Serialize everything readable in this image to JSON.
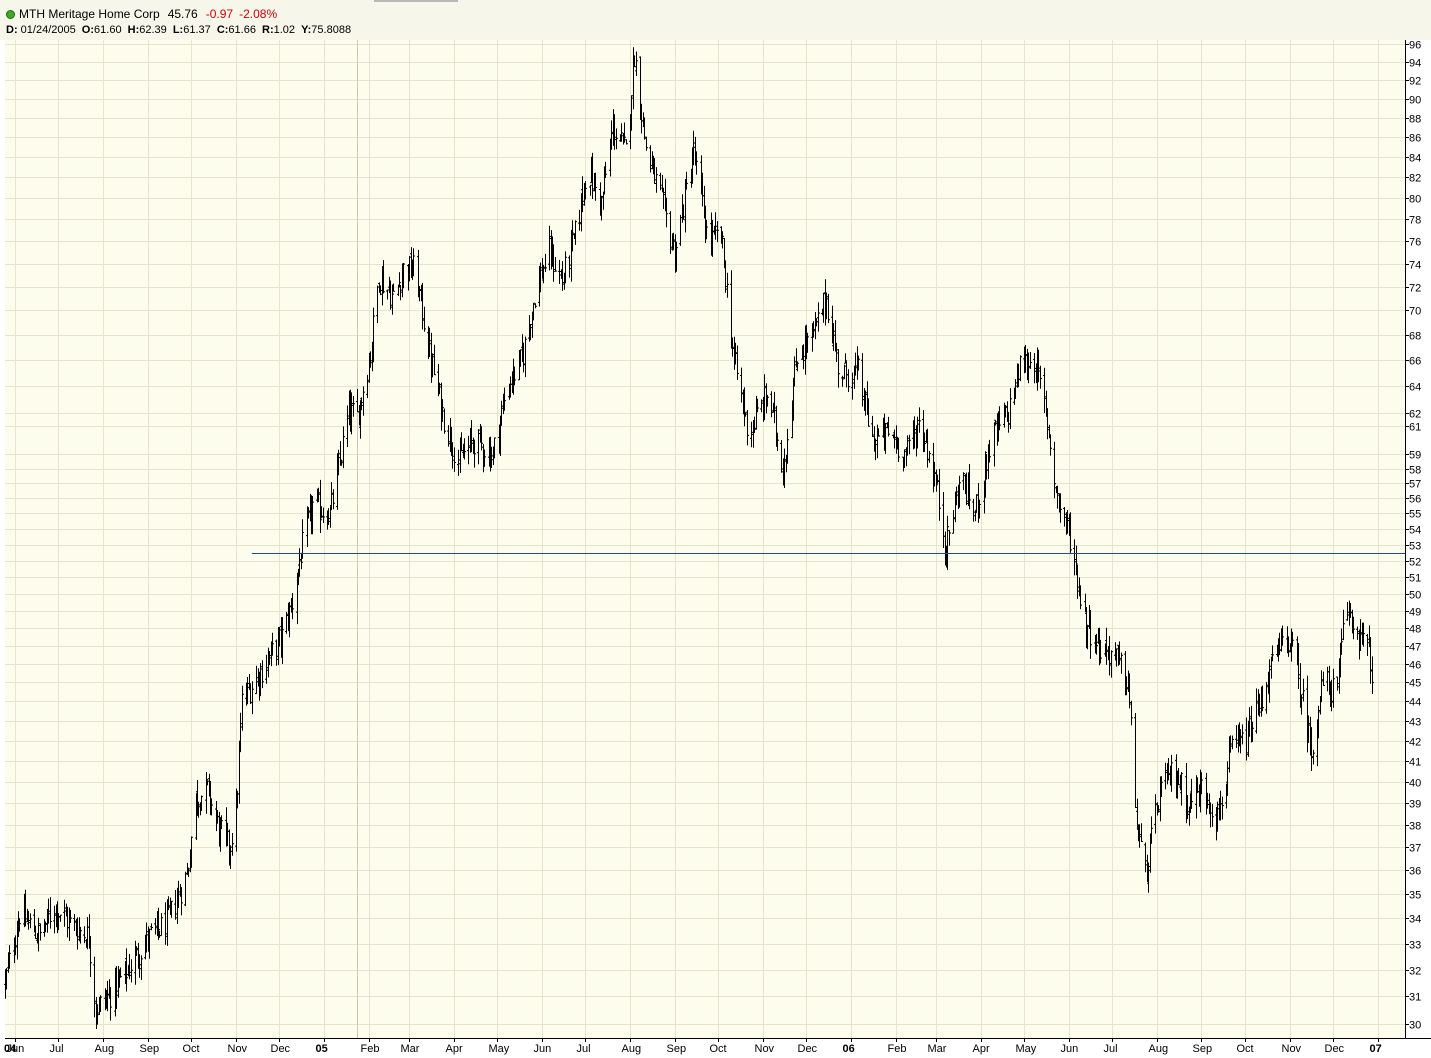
{
  "header": {
    "symbol_name": "MTH Meritage Home Corp",
    "price": "45.76",
    "change": "-0.97",
    "change_pct": "-2.08%",
    "status_icon": "green-circle-icon",
    "ohlc": {
      "d_label": "D:",
      "d_value": "01/24/2005",
      "o_label": "O:",
      "o_value": "61.60",
      "h_label": "H:",
      "h_value": "62.39",
      "l_label": "L:",
      "l_value": "61.37",
      "c_label": "C:",
      "c_value": "61.66",
      "r_label": "R:",
      "r_value": "1.02",
      "y_label": "Y:",
      "y_value": "75.8088"
    }
  },
  "colors": {
    "plot_background": "#fdfdee",
    "grid": "#e6e4cf",
    "bars": "#000000",
    "support_line": "#1f4b99",
    "negative_change": "#d00000"
  },
  "chart_data": {
    "type": "ohlc",
    "title": "",
    "xlabel": "",
    "ylabel": "",
    "y_scale": "log",
    "ylim": [
      29.5,
      96.5
    ],
    "y_ticks": [
      30,
      31,
      32,
      33,
      34,
      35,
      36,
      37,
      38,
      39,
      40,
      41,
      42,
      43,
      44,
      45,
      46,
      47,
      48,
      49,
      50,
      51,
      52,
      53,
      54,
      55,
      56,
      57,
      58,
      59,
      61,
      62,
      64,
      66,
      68,
      70,
      72,
      74,
      76,
      78,
      80,
      82,
      84,
      86,
      88,
      90,
      92,
      94,
      96
    ],
    "x_range": [
      "2004-05-25",
      "2007-01-20"
    ],
    "x_ticks": [
      {
        "date": "2004-06-01",
        "label": "Jun"
      },
      {
        "date": "2004-07-01",
        "label": "Jul"
      },
      {
        "date": "2004-08-01",
        "label": "Aug"
      },
      {
        "date": "2004-09-01",
        "label": "Sep"
      },
      {
        "date": "2004-10-01",
        "label": "Oct"
      },
      {
        "date": "2004-11-01",
        "label": "Nov"
      },
      {
        "date": "2004-12-01",
        "label": "Dec"
      },
      {
        "date": "2005-01-01",
        "label": "05",
        "bold": true
      },
      {
        "date": "2005-02-01",
        "label": "Feb"
      },
      {
        "date": "2005-03-01",
        "label": "Mar"
      },
      {
        "date": "2005-04-01",
        "label": "Apr"
      },
      {
        "date": "2005-05-01",
        "label": "May"
      },
      {
        "date": "2005-06-01",
        "label": "Jun"
      },
      {
        "date": "2005-07-01",
        "label": "Jul"
      },
      {
        "date": "2005-08-01",
        "label": "Aug"
      },
      {
        "date": "2005-09-01",
        "label": "Sep"
      },
      {
        "date": "2005-10-01",
        "label": "Oct"
      },
      {
        "date": "2005-11-01",
        "label": "Nov"
      },
      {
        "date": "2005-12-01",
        "label": "Dec"
      },
      {
        "date": "2006-01-01",
        "label": "06",
        "bold": true
      },
      {
        "date": "2006-02-01",
        "label": "Feb"
      },
      {
        "date": "2006-03-01",
        "label": "Mar"
      },
      {
        "date": "2006-04-01",
        "label": "Apr"
      },
      {
        "date": "2006-05-01",
        "label": "May"
      },
      {
        "date": "2006-06-01",
        "label": "Jun"
      },
      {
        "date": "2006-07-01",
        "label": "Jul"
      },
      {
        "date": "2006-08-01",
        "label": "Aug"
      },
      {
        "date": "2006-09-01",
        "label": "Sep"
      },
      {
        "date": "2006-10-01",
        "label": "Oct"
      },
      {
        "date": "2006-11-01",
        "label": "Nov"
      },
      {
        "date": "2006-12-01",
        "label": "Dec"
      },
      {
        "date": "2007-01-01",
        "label": "07",
        "bold": true
      }
    ],
    "year_start_label": "04",
    "cursor_date": "2005-01-24",
    "horizontal_line": {
      "y": 52.5,
      "from_date": "2004-11-12"
    },
    "grid": true,
    "legend": "none",
    "price_path": [
      {
        "date": "2004-05-25",
        "close": 31.5
      },
      {
        "date": "2004-06-04",
        "close": 34.2
      },
      {
        "date": "2004-06-18",
        "close": 33.3
      },
      {
        "date": "2004-06-28",
        "close": 34.5
      },
      {
        "date": "2004-07-09",
        "close": 33.8
      },
      {
        "date": "2004-07-22",
        "close": 33.3
      },
      {
        "date": "2004-07-27",
        "close": 30.5
      },
      {
        "date": "2004-08-06",
        "close": 31.1
      },
      {
        "date": "2004-08-18",
        "close": 32.0
      },
      {
        "date": "2004-09-01",
        "close": 33.2
      },
      {
        "date": "2004-09-14",
        "close": 33.8
      },
      {
        "date": "2004-09-28",
        "close": 35.8
      },
      {
        "date": "2004-10-04",
        "close": 39.2
      },
      {
        "date": "2004-10-12",
        "close": 39.6
      },
      {
        "date": "2004-10-20",
        "close": 37.8
      },
      {
        "date": "2004-10-27",
        "close": 37.0
      },
      {
        "date": "2004-11-01",
        "close": 38.5
      },
      {
        "date": "2004-11-05",
        "close": 44.0
      },
      {
        "date": "2004-11-15",
        "close": 45.2
      },
      {
        "date": "2004-11-25",
        "close": 46.5
      },
      {
        "date": "2004-12-03",
        "close": 47.5
      },
      {
        "date": "2004-12-10",
        "close": 49.5
      },
      {
        "date": "2004-12-16",
        "close": 52.5
      },
      {
        "date": "2004-12-24",
        "close": 55.5
      },
      {
        "date": "2005-01-05",
        "close": 55.0
      },
      {
        "date": "2005-01-12",
        "close": 58.5
      },
      {
        "date": "2005-01-18",
        "close": 62.0
      },
      {
        "date": "2005-01-24",
        "close": 61.66
      },
      {
        "date": "2005-02-02",
        "close": 66.5
      },
      {
        "date": "2005-02-08",
        "close": 73.0
      },
      {
        "date": "2005-02-18",
        "close": 71.0
      },
      {
        "date": "2005-02-25",
        "close": 73.5
      },
      {
        "date": "2005-03-05",
        "close": 73.5
      },
      {
        "date": "2005-03-15",
        "close": 66.5
      },
      {
        "date": "2005-03-24",
        "close": 62.0
      },
      {
        "date": "2005-04-04",
        "close": 58.5
      },
      {
        "date": "2005-04-15",
        "close": 60.0
      },
      {
        "date": "2005-04-28",
        "close": 59.0
      },
      {
        "date": "2005-05-08",
        "close": 64.0
      },
      {
        "date": "2005-05-18",
        "close": 66.0
      },
      {
        "date": "2005-05-28",
        "close": 72.0
      },
      {
        "date": "2005-06-06",
        "close": 75.0
      },
      {
        "date": "2005-06-15",
        "close": 72.5
      },
      {
        "date": "2005-06-25",
        "close": 77.0
      },
      {
        "date": "2005-07-02",
        "close": 83.0
      },
      {
        "date": "2005-07-12",
        "close": 79.5
      },
      {
        "date": "2005-07-20",
        "close": 87.0
      },
      {
        "date": "2005-07-29",
        "close": 84.5
      },
      {
        "date": "2005-08-04",
        "close": 95.0
      },
      {
        "date": "2005-08-12",
        "close": 85.0
      },
      {
        "date": "2005-08-22",
        "close": 80.0
      },
      {
        "date": "2005-09-01",
        "close": 75.0
      },
      {
        "date": "2005-09-08",
        "close": 80.0
      },
      {
        "date": "2005-09-14",
        "close": 84.5
      },
      {
        "date": "2005-09-24",
        "close": 76.0
      },
      {
        "date": "2005-10-03",
        "close": 76.5
      },
      {
        "date": "2005-10-12",
        "close": 66.0
      },
      {
        "date": "2005-10-22",
        "close": 60.5
      },
      {
        "date": "2005-11-05",
        "close": 63.5
      },
      {
        "date": "2005-11-15",
        "close": 58.0
      },
      {
        "date": "2005-11-25",
        "close": 66.5
      },
      {
        "date": "2005-12-06",
        "close": 68.0
      },
      {
        "date": "2005-12-15",
        "close": 71.0
      },
      {
        "date": "2005-12-24",
        "close": 65.0
      },
      {
        "date": "2006-01-06",
        "close": 65.0
      },
      {
        "date": "2006-01-16",
        "close": 60.0
      },
      {
        "date": "2006-01-28",
        "close": 60.5
      },
      {
        "date": "2006-02-08",
        "close": 59.0
      },
      {
        "date": "2006-02-18",
        "close": 61.5
      },
      {
        "date": "2006-03-01",
        "close": 57.0
      },
      {
        "date": "2006-03-08",
        "close": 52.8
      },
      {
        "date": "2006-03-18",
        "close": 57.5
      },
      {
        "date": "2006-03-28",
        "close": 55.0
      },
      {
        "date": "2006-04-08",
        "close": 60.0
      },
      {
        "date": "2006-04-20",
        "close": 62.0
      },
      {
        "date": "2006-04-28",
        "close": 65.5
      },
      {
        "date": "2006-05-08",
        "close": 66.0
      },
      {
        "date": "2006-05-16",
        "close": 62.0
      },
      {
        "date": "2006-05-24",
        "close": 56.0
      },
      {
        "date": "2006-06-02",
        "close": 53.5
      },
      {
        "date": "2006-06-12",
        "close": 48.5
      },
      {
        "date": "2006-06-22",
        "close": 47.0
      },
      {
        "date": "2006-07-02",
        "close": 46.5
      },
      {
        "date": "2006-07-12",
        "close": 45.0
      },
      {
        "date": "2006-07-18",
        "close": 38.0
      },
      {
        "date": "2006-07-24",
        "close": 35.8
      },
      {
        "date": "2006-08-03",
        "close": 39.5
      },
      {
        "date": "2006-08-13",
        "close": 40.5
      },
      {
        "date": "2006-08-23",
        "close": 39.0
      },
      {
        "date": "2006-09-02",
        "close": 39.8
      },
      {
        "date": "2006-09-12",
        "close": 38.3
      },
      {
        "date": "2006-09-22",
        "close": 41.5
      },
      {
        "date": "2006-10-02",
        "close": 42.0
      },
      {
        "date": "2006-10-12",
        "close": 44.0
      },
      {
        "date": "2006-10-22",
        "close": 46.5
      },
      {
        "date": "2006-11-01",
        "close": 47.5
      },
      {
        "date": "2006-11-10",
        "close": 44.0
      },
      {
        "date": "2006-11-16",
        "close": 41.5
      },
      {
        "date": "2006-11-24",
        "close": 45.0
      },
      {
        "date": "2006-12-04",
        "close": 44.5
      },
      {
        "date": "2006-12-10",
        "close": 49.5
      },
      {
        "date": "2006-12-16",
        "close": 48.0
      },
      {
        "date": "2006-12-22",
        "close": 47.5
      },
      {
        "date": "2006-12-28",
        "close": 45.76
      }
    ]
  }
}
